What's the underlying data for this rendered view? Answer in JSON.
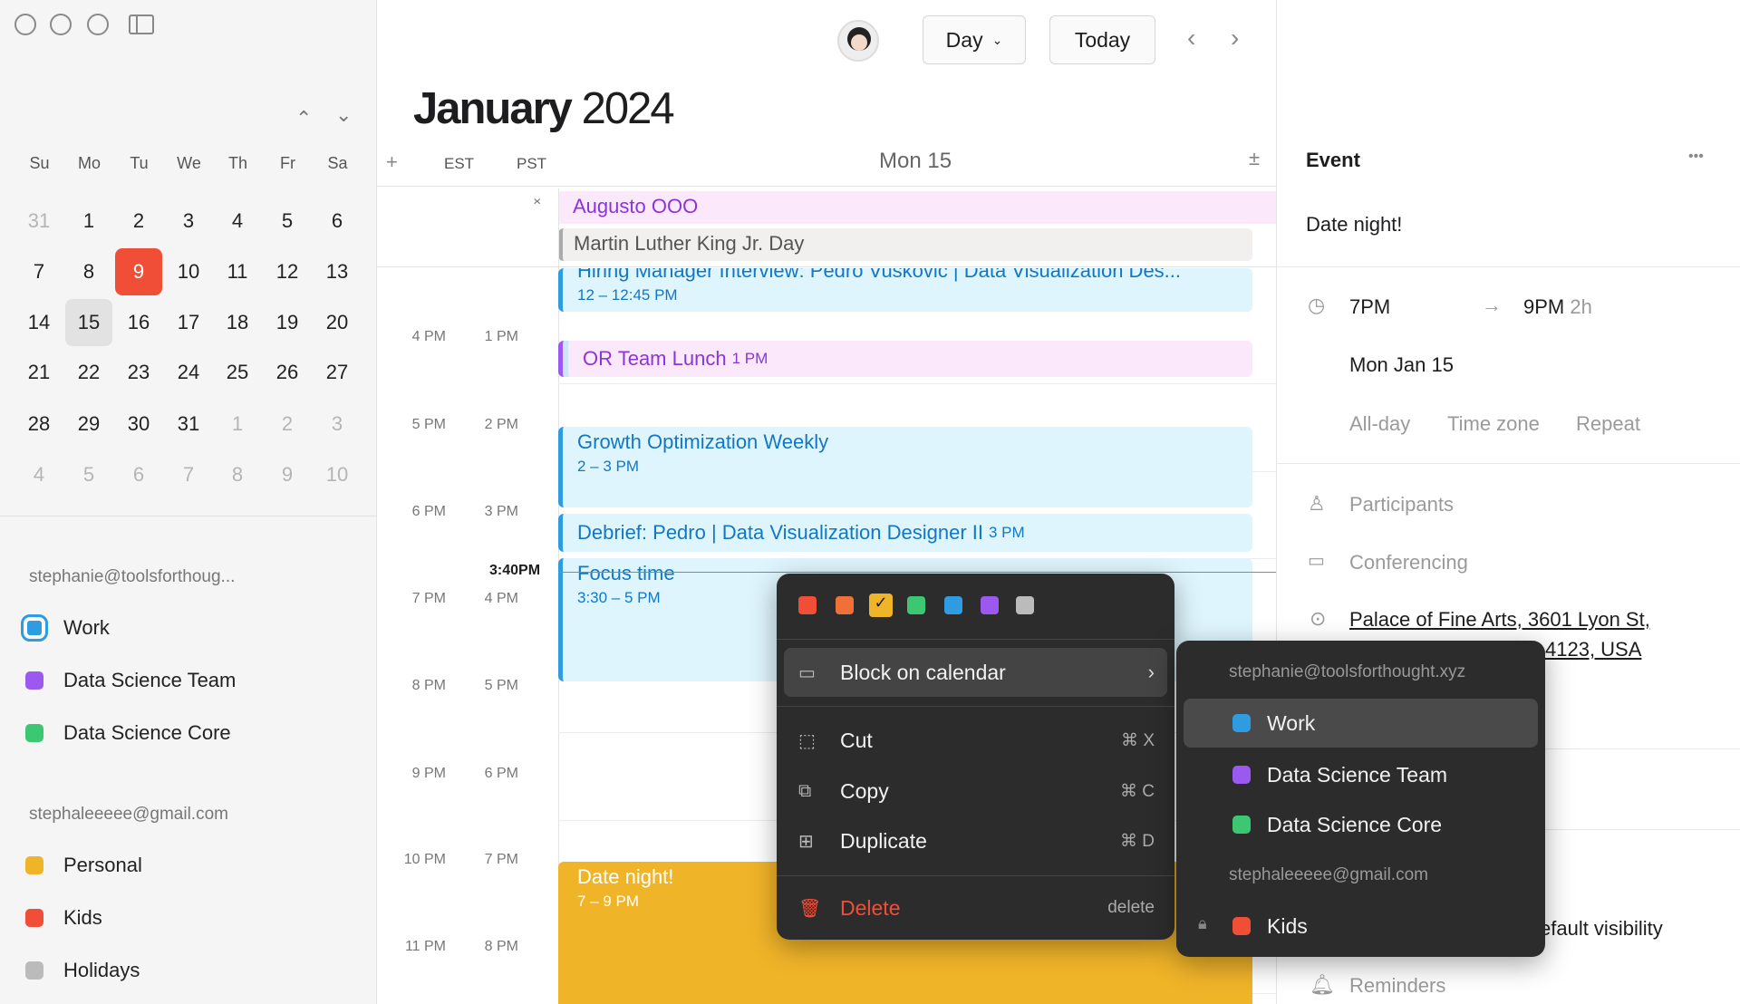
{
  "sidebar": {
    "month_nav": {
      "prev": "⌃",
      "next": "⌄"
    },
    "weekdays": [
      "Su",
      "Mo",
      "Tu",
      "We",
      "Th",
      "Fr",
      "Sa"
    ],
    "days": [
      {
        "d": "31",
        "m": true
      },
      {
        "d": "1"
      },
      {
        "d": "2"
      },
      {
        "d": "3"
      },
      {
        "d": "4"
      },
      {
        "d": "5"
      },
      {
        "d": "6"
      },
      {
        "d": "7"
      },
      {
        "d": "8"
      },
      {
        "d": "9",
        "today": true
      },
      {
        "d": "10"
      },
      {
        "d": "11"
      },
      {
        "d": "12"
      },
      {
        "d": "13"
      },
      {
        "d": "14"
      },
      {
        "d": "15",
        "sel": true
      },
      {
        "d": "16"
      },
      {
        "d": "17"
      },
      {
        "d": "18"
      },
      {
        "d": "19"
      },
      {
        "d": "20"
      },
      {
        "d": "21"
      },
      {
        "d": "22"
      },
      {
        "d": "23"
      },
      {
        "d": "24"
      },
      {
        "d": "25"
      },
      {
        "d": "26"
      },
      {
        "d": "27"
      },
      {
        "d": "28"
      },
      {
        "d": "29"
      },
      {
        "d": "30"
      },
      {
        "d": "31"
      },
      {
        "d": "1",
        "m": true
      },
      {
        "d": "2",
        "m": true
      },
      {
        "d": "3",
        "m": true
      },
      {
        "d": "4",
        "m": true
      },
      {
        "d": "5",
        "m": true
      },
      {
        "d": "6",
        "m": true
      },
      {
        "d": "7",
        "m": true
      },
      {
        "d": "8",
        "m": true
      },
      {
        "d": "9",
        "m": true
      },
      {
        "d": "10",
        "m": true
      }
    ],
    "accounts": [
      {
        "email": "stephanie@toolsforthoug...",
        "calendars": [
          {
            "name": "Work",
            "color": "#2f9be0",
            "selected": true
          },
          {
            "name": "Data Science Team",
            "color": "#9b59f0"
          },
          {
            "name": "Data Science Core",
            "color": "#3cc873"
          }
        ]
      },
      {
        "email": "stephaleeeee@gmail.com",
        "calendars": [
          {
            "name": "Personal",
            "color": "#f0b429"
          },
          {
            "name": "Kids",
            "color": "#f04e37"
          },
          {
            "name": "Holidays",
            "color": "#bbbbbb",
            "icon": "rss-icon"
          }
        ]
      }
    ]
  },
  "toolbar": {
    "view": "Day",
    "today": "Today"
  },
  "header": {
    "month": "January",
    "year": "2024",
    "tz1": "EST",
    "tz2": "PST",
    "day": "Mon 15",
    "add": "+",
    "plusminus": "±"
  },
  "allday": [
    {
      "title": "Augusto OOO"
    },
    {
      "title": "Martin Luther King Jr. Day"
    }
  ],
  "hours": {
    "est": [
      "4 PM",
      "5 PM",
      "6 PM",
      "7 PM",
      "8 PM",
      "9 PM",
      "10 PM",
      "11 PM"
    ],
    "pst": [
      "1 PM",
      "2 PM",
      "3 PM",
      "4 PM",
      "5 PM",
      "6 PM",
      "7 PM",
      "8 PM"
    ]
  },
  "now": "3:40PM",
  "events": [
    {
      "title": "Hiring Manager Interview: Pedro Vuskovic | Data Visualization Des...",
      "time": "12 – 12:45 PM"
    },
    {
      "title": "OR Team Lunch",
      "time": "1 PM"
    },
    {
      "title": "Growth Optimization Weekly",
      "time": "2 – 3 PM"
    },
    {
      "title": "Debrief: Pedro | Data Visualization Designer II",
      "time": "3 PM"
    },
    {
      "title": "Focus time",
      "time": "3:30 – 5 PM"
    },
    {
      "title": "Date night!",
      "time": "7 – 9 PM"
    }
  ],
  "context_menu": {
    "colors": [
      "#f04e37",
      "#f0703a",
      "#f0b429",
      "#3cc873",
      "#2f9be0",
      "#9b59f0",
      "#bbbbbb"
    ],
    "selected_color": "#f0b429",
    "block": "Block on calendar",
    "items": [
      {
        "label": "Cut",
        "key": "⌘ X"
      },
      {
        "label": "Copy",
        "key": "⌘ C"
      },
      {
        "label": "Duplicate",
        "key": "⌘ D"
      }
    ],
    "delete": "Delete",
    "delete_key": "delete"
  },
  "submenu": {
    "account1": "stephanie@toolsforthought.xyz",
    "account2": "stephaleeeee@gmail.com",
    "items": [
      "Work",
      "Data Science Team",
      "Data Science Core"
    ],
    "kids": "Kids"
  },
  "panel": {
    "heading": "Event",
    "more": "•••",
    "title": "Date night!",
    "start": "7PM",
    "end": "9PM",
    "duration": "2h",
    "date": "Mon Jan 15",
    "allday": "All-day",
    "timezone": "Time zone",
    "repeat": "Repeat",
    "participants": "Participants",
    "conferencing": "Conferencing",
    "location1": "Palace of Fine Arts, 3601 Lyon St,",
    "location2": "4123, USA",
    "visibility": "efault visibility",
    "reminders": "Reminders"
  }
}
